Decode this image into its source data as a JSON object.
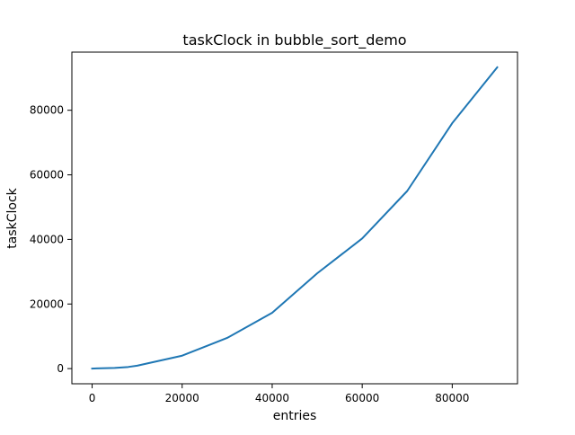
{
  "chart_data": {
    "type": "line",
    "title": "taskClock in bubble_sort_demo",
    "xlabel": "entries",
    "ylabel": "taskClock",
    "xlim": [
      -4500,
      94500
    ],
    "ylim": [
      -4700,
      98000
    ],
    "xticks": [
      0,
      20000,
      40000,
      60000,
      80000
    ],
    "yticks": [
      0,
      20000,
      40000,
      60000,
      80000
    ],
    "grid": false,
    "legend": "none",
    "series": [
      {
        "color": "#1f77b4",
        "x": [
          0,
          1000,
          5000,
          8000,
          10000,
          20000,
          30000,
          40000,
          50000,
          60000,
          70000,
          80000,
          90000
        ],
        "y": [
          0,
          50,
          200,
          500,
          900,
          4000,
          9500,
          17300,
          29500,
          40300,
          55000,
          76000,
          93300
        ]
      }
    ]
  }
}
